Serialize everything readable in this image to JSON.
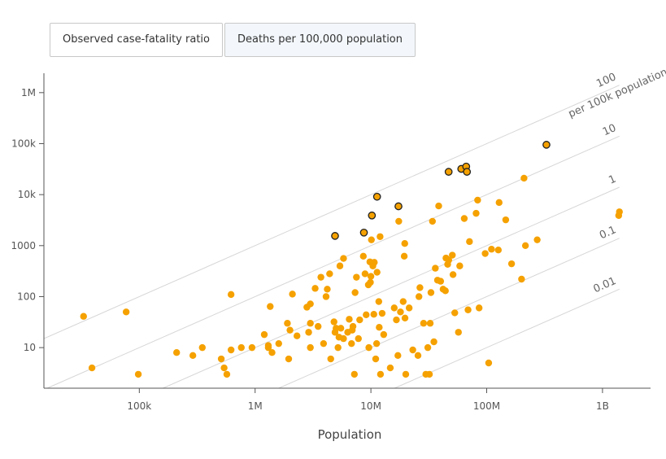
{
  "tabs": [
    {
      "label": "Observed case-fatality ratio",
      "active": false
    },
    {
      "label": "Deaths per 100,000 population",
      "active": true
    }
  ],
  "chart_data": {
    "type": "scatter",
    "xlabel": "Population",
    "ylabel": "",
    "xscale": "log",
    "yscale": "log",
    "xlim": [
      15000,
      2600000000
    ],
    "ylim": [
      1.6,
      2400000
    ],
    "x_ticks": [
      {
        "value": 100000,
        "label": "100k"
      },
      {
        "value": 1000000,
        "label": "1M"
      },
      {
        "value": 10000000,
        "label": "10M"
      },
      {
        "value": 100000000,
        "label": "100M"
      },
      {
        "value": 1000000000,
        "label": "1B"
      }
    ],
    "y_ticks": [
      {
        "value": 10,
        "label": "10"
      },
      {
        "value": 100,
        "label": "100"
      },
      {
        "value": 1000,
        "label": "1000"
      },
      {
        "value": 10000,
        "label": "10k"
      },
      {
        "value": 100000,
        "label": "100k"
      },
      {
        "value": 1000000,
        "label": "1M"
      }
    ],
    "reference_lines": [
      {
        "rate": 100,
        "label": "100",
        "sublabel": "per 100k population"
      },
      {
        "rate": 10,
        "label": "10"
      },
      {
        "rate": 1,
        "label": "1"
      },
      {
        "rate": 0.1,
        "label": "0.1"
      },
      {
        "rate": 0.01,
        "label": "0.01"
      }
    ],
    "colors": {
      "point": "#f5a100",
      "highlight_stroke": "#222222",
      "reference_line": "#d6d6d6",
      "axis": "#555555"
    },
    "grid": false,
    "highlighted_points": [
      [
        4900000,
        1550
      ],
      [
        8700000,
        1800
      ],
      [
        10200000,
        3900
      ],
      [
        11300000,
        9100
      ],
      [
        17300000,
        5900
      ],
      [
        46900000,
        28000
      ],
      [
        60300000,
        32000
      ],
      [
        66500000,
        35500
      ],
      [
        67500000,
        28000
      ],
      [
        328000000,
        95000
      ]
    ],
    "points": [
      [
        33000,
        41
      ],
      [
        39000,
        4
      ],
      [
        77000,
        50
      ],
      [
        98000,
        3
      ],
      [
        210000,
        8
      ],
      [
        290000,
        7
      ],
      [
        350000,
        10
      ],
      [
        510000,
        6
      ],
      [
        540000,
        4
      ],
      [
        570000,
        3
      ],
      [
        620000,
        9
      ],
      [
        620000,
        110
      ],
      [
        760000,
        10
      ],
      [
        940000,
        10
      ],
      [
        1200000,
        18
      ],
      [
        1300000,
        11
      ],
      [
        1300000,
        10
      ],
      [
        1350000,
        64
      ],
      [
        1400000,
        8
      ],
      [
        1600000,
        12
      ],
      [
        1900000,
        30
      ],
      [
        1950000,
        6
      ],
      [
        2000000,
        22
      ],
      [
        2100000,
        112
      ],
      [
        2300000,
        17
      ],
      [
        2800000,
        62
      ],
      [
        2900000,
        20
      ],
      [
        3000000,
        10
      ],
      [
        3000000,
        72
      ],
      [
        3000000,
        30
      ],
      [
        3300000,
        145
      ],
      [
        3500000,
        26
      ],
      [
        3700000,
        240
      ],
      [
        3900000,
        12
      ],
      [
        4100000,
        100
      ],
      [
        4200000,
        140
      ],
      [
        4400000,
        280
      ],
      [
        4500000,
        6
      ],
      [
        4800000,
        32
      ],
      [
        4900000,
        20
      ],
      [
        5000000,
        24
      ],
      [
        5200000,
        10
      ],
      [
        5300000,
        16
      ],
      [
        5400000,
        400
      ],
      [
        5500000,
        24
      ],
      [
        5800000,
        15
      ],
      [
        5800000,
        560
      ],
      [
        6300000,
        20
      ],
      [
        6500000,
        36
      ],
      [
        6800000,
        12
      ],
      [
        6900000,
        22
      ],
      [
        7000000,
        26
      ],
      [
        7200000,
        3
      ],
      [
        7300000,
        120
      ],
      [
        7500000,
        240
      ],
      [
        7800000,
        15
      ],
      [
        8000000,
        35
      ],
      [
        8600000,
        620
      ],
      [
        8900000,
        280
      ],
      [
        9100000,
        44
      ],
      [
        9500000,
        170
      ],
      [
        9600000,
        10
      ],
      [
        9800000,
        480
      ],
      [
        9900000,
        190
      ],
      [
        10000000,
        250
      ],
      [
        10100000,
        1300
      ],
      [
        10400000,
        400
      ],
      [
        10600000,
        45
      ],
      [
        10700000,
        470
      ],
      [
        11000000,
        6
      ],
      [
        11200000,
        12
      ],
      [
        11300000,
        300
      ],
      [
        11700000,
        80
      ],
      [
        11800000,
        25
      ],
      [
        12000000,
        1500
      ],
      [
        12100000,
        3
      ],
      [
        12500000,
        47
      ],
      [
        12900000,
        18
      ],
      [
        14700000,
        4
      ],
      [
        15900000,
        60
      ],
      [
        16600000,
        35
      ],
      [
        17100000,
        7
      ],
      [
        17400000,
        3000
      ],
      [
        18000000,
        50
      ],
      [
        19000000,
        80
      ],
      [
        19400000,
        620
      ],
      [
        19600000,
        1100
      ],
      [
        19700000,
        38
      ],
      [
        20000000,
        3
      ],
      [
        21400000,
        60
      ],
      [
        23000000,
        9
      ],
      [
        25500000,
        7
      ],
      [
        26000000,
        100
      ],
      [
        26500000,
        150
      ],
      [
        28500000,
        30
      ],
      [
        29800000,
        3
      ],
      [
        31000000,
        10
      ],
      [
        32000000,
        3
      ],
      [
        32500000,
        30
      ],
      [
        33000000,
        120
      ],
      [
        34000000,
        3000
      ],
      [
        35000000,
        13
      ],
      [
        36000000,
        360
      ],
      [
        37600000,
        210
      ],
      [
        38500000,
        6000
      ],
      [
        40000000,
        200
      ],
      [
        42000000,
        140
      ],
      [
        44000000,
        130
      ],
      [
        44500000,
        570
      ],
      [
        46000000,
        430
      ],
      [
        47000000,
        520
      ],
      [
        50500000,
        650
      ],
      [
        51200000,
        270
      ],
      [
        53000000,
        48
      ],
      [
        57000000,
        20
      ],
      [
        58500000,
        400
      ],
      [
        64000000,
        3400
      ],
      [
        69000000,
        55
      ],
      [
        71000000,
        1200
      ],
      [
        81000000,
        4300
      ],
      [
        83500000,
        7800
      ],
      [
        86000000,
        60
      ],
      [
        97000000,
        700
      ],
      [
        104000000,
        5
      ],
      [
        110000000,
        850
      ],
      [
        126000000,
        820
      ],
      [
        128000000,
        7000
      ],
      [
        146000000,
        3200
      ],
      [
        164000000,
        440
      ],
      [
        200000000,
        220
      ],
      [
        210000000,
        21000
      ],
      [
        216000000,
        1000
      ],
      [
        273000000,
        1300
      ],
      [
        1380000000,
        3900
      ],
      [
        1400000000,
        4600
      ]
    ]
  }
}
